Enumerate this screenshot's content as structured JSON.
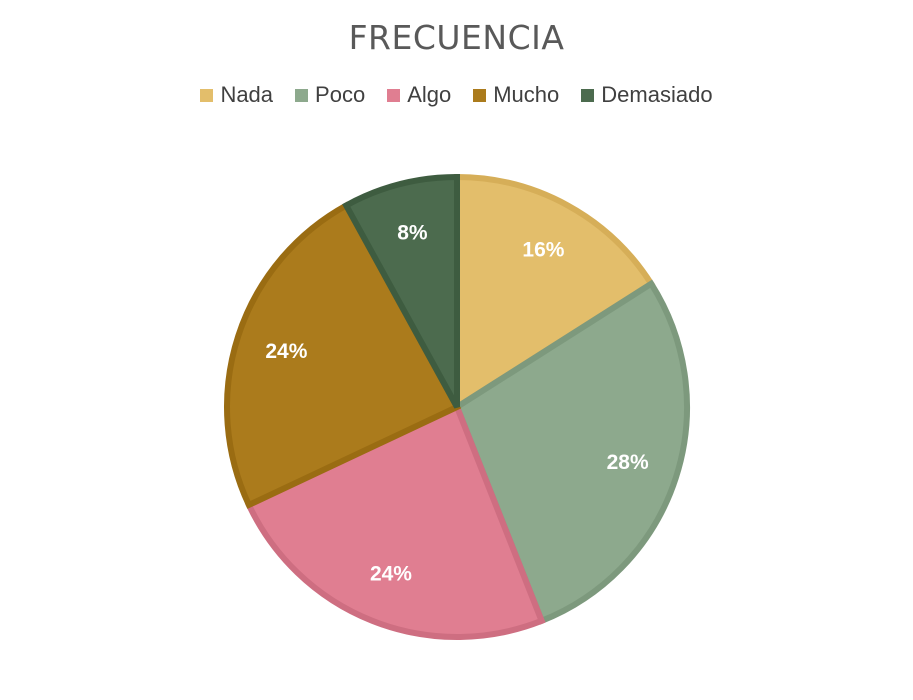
{
  "chart_data": {
    "type": "pie",
    "title": "FRECUENCIA",
    "categories": [
      "Nada",
      "Poco",
      "Algo",
      "Mucho",
      "Demasiado"
    ],
    "values": [
      16,
      28,
      24,
      24,
      8
    ],
    "labels": [
      "16%",
      "28%",
      "24%",
      "24%",
      "8%"
    ],
    "colors": [
      "#E3BE6B",
      "#8DA98D",
      "#E07E91",
      "#AB7B1C",
      "#4C6B4E"
    ],
    "border_colors": [
      "#D6AE58",
      "#7D997D",
      "#CE6E81",
      "#9A6C12",
      "#3E5C40"
    ],
    "legend": "top",
    "start_angle_deg": 0,
    "direction": "clockwise"
  }
}
